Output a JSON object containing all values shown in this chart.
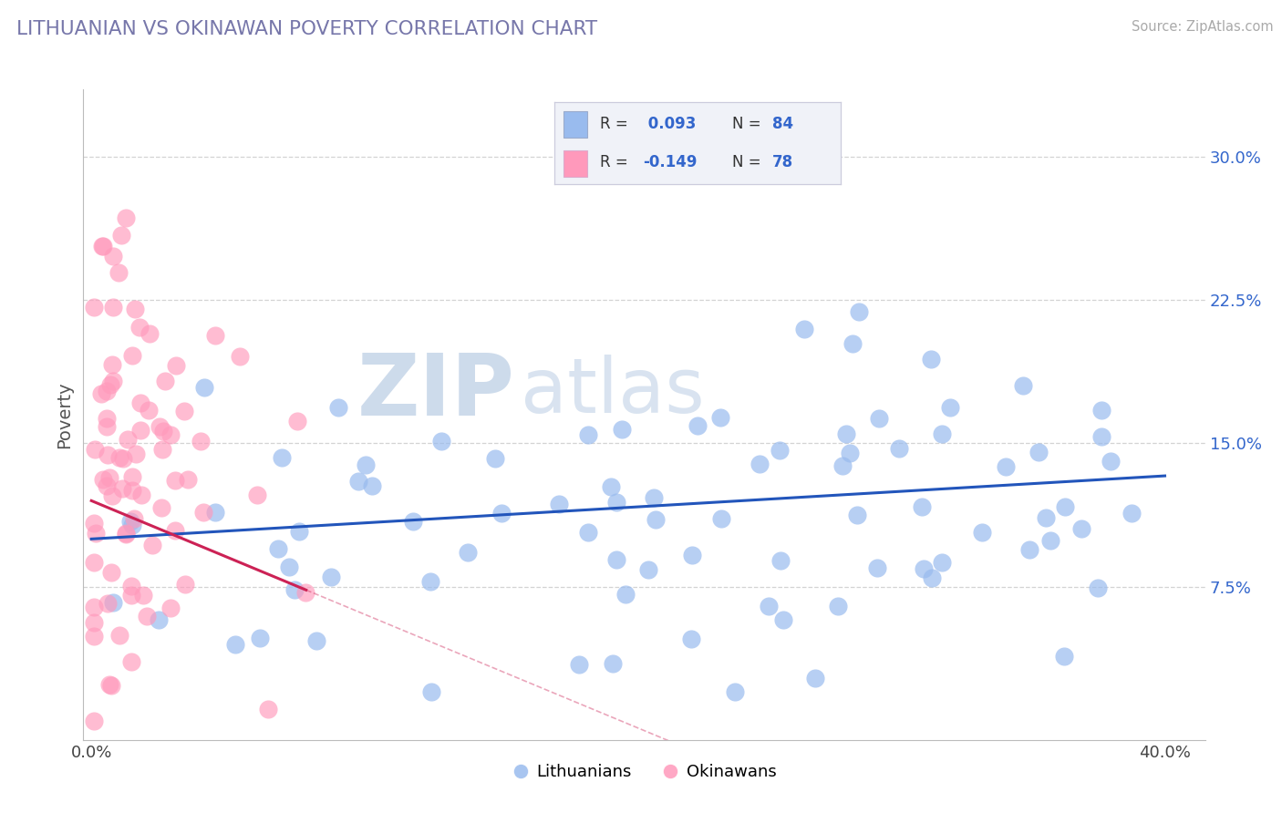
{
  "title": "LITHUANIAN VS OKINAWAN POVERTY CORRELATION CHART",
  "source": "Source: ZipAtlas.com",
  "ylabel": "Poverty",
  "ytick_vals": [
    0.075,
    0.15,
    0.225,
    0.3
  ],
  "ytick_labels": [
    "7.5%",
    "15.0%",
    "22.5%",
    "30.0%"
  ],
  "xtick_vals": [
    0.0,
    0.4
  ],
  "xtick_labels": [
    "0.0%",
    "40.0%"
  ],
  "xlim": [
    -0.003,
    0.415
  ],
  "ylim": [
    -0.005,
    0.335
  ],
  "r_blue": 0.093,
  "n_blue": 84,
  "r_pink": -0.149,
  "n_pink": 78,
  "blue_scatter_color": "#99BBEE",
  "pink_scatter_color": "#FF99BB",
  "blue_line_color": "#2255BB",
  "pink_line_color": "#CC2255",
  "bg_color": "#FFFFFF",
  "grid_color": "#CCCCCC",
  "title_color": "#7777AA",
  "source_color": "#AAAAAA",
  "tick_color": "#3366CC",
  "legend_bg": "#F0F2F8",
  "legend_border": "#CCCCDD",
  "watermark_zip_color": "#BBCCDD",
  "watermark_atlas_color": "#AABBCC"
}
